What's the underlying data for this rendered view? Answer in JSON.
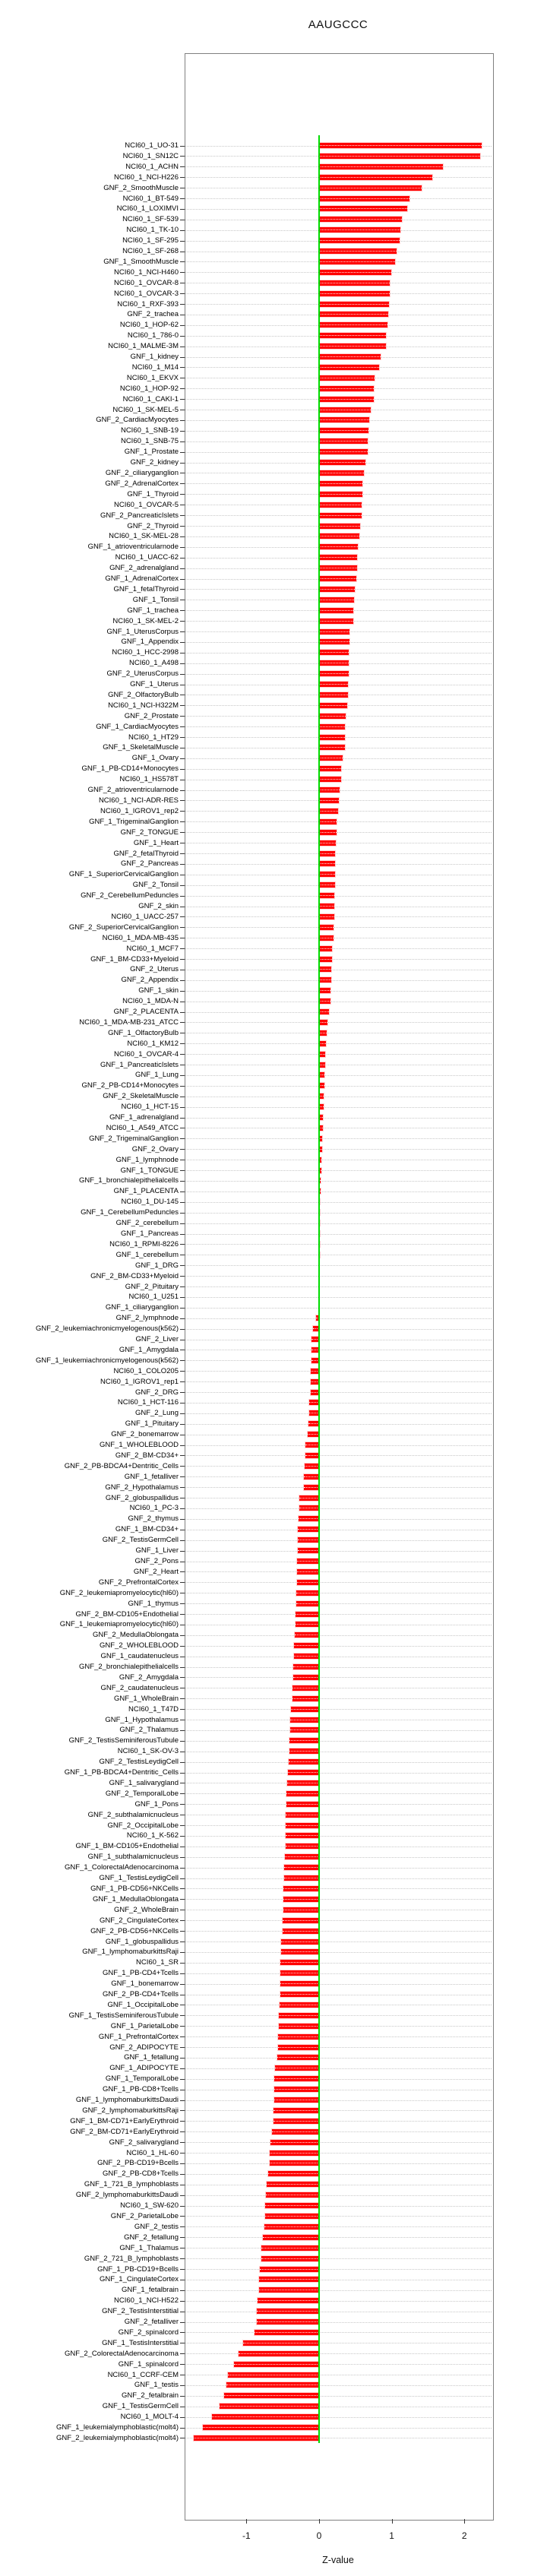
{
  "title": "AAUGCCC",
  "chart_data": {
    "type": "bar",
    "orientation": "horizontal",
    "title": "AAUGCCC",
    "xlabel": "Z-value",
    "x_ticks": [
      -1,
      0,
      1,
      2
    ],
    "xlim": [
      -1.86,
      2.38
    ],
    "grid": "dotted-per-row",
    "legend_position": "none",
    "bar_color": "#FF0000",
    "zero_line_color": "#00DD00",
    "categories": [
      "NCI60_1_UO-31",
      "NCI60_1_SN12C",
      "NCI60_1_ACHN",
      "NCI60_1_NCI-H226",
      "GNF_2_SmoothMuscle",
      "NCI60_1_BT-549",
      "NCI60_1_LOXIMVI",
      "NCI60_1_SF-539",
      "NCI60_1_TK-10",
      "NCI60_1_SF-295",
      "NCI60_1_SF-268",
      "GNF_1_SmoothMuscle",
      "NCI60_1_NCI-H460",
      "NCI60_1_OVCAR-8",
      "NCI60_1_OVCAR-3",
      "NCI60_1_RXF-393",
      "GNF_2_trachea",
      "NCI60_1_HOP-62",
      "NCI60_1_786-0",
      "NCI60_1_MALME-3M",
      "GNF_1_kidney",
      "NCI60_1_M14",
      "NCI60_1_EKVX",
      "NCI60_1_HOP-92",
      "NCI60_1_CAKI-1",
      "NCI60_1_SK-MEL-5",
      "GNF_2_CardiacMyocytes",
      "NCI60_1_SNB-19",
      "NCI60_1_SNB-75",
      "GNF_1_Prostate",
      "GNF_2_kidney",
      "GNF_2_ciliaryganglion",
      "GNF_2_AdrenalCortex",
      "GNF_1_Thyroid",
      "NCI60_1_OVCAR-5",
      "GNF_2_PancreaticIslets",
      "GNF_2_Thyroid",
      "NCI60_1_SK-MEL-28",
      "GNF_1_atrioventricularnode",
      "NCI60_1_UACC-62",
      "GNF_2_adrenalgland",
      "GNF_1_AdrenalCortex",
      "GNF_1_fetalThyroid",
      "GNF_1_Tonsil",
      "GNF_1_trachea",
      "NCI60_1_SK-MEL-2",
      "GNF_1_UterusCorpus",
      "GNF_1_Appendix",
      "NCI60_1_HCC-2998",
      "NCI60_1_A498",
      "GNF_2_UterusCorpus",
      "GNF_1_Uterus",
      "GNF_2_OlfactoryBulb",
      "NCI60_1_NCI-H322M",
      "GNF_2_Prostate",
      "GNF_1_CardiacMyocytes",
      "NCI60_1_HT29",
      "GNF_1_SkeletalMuscle",
      "GNF_1_Ovary",
      "GNF_1_PB-CD14+Monocytes",
      "NCI60_1_HS578T",
      "GNF_2_atrioventricularnode",
      "NCI60_1_NCI-ADR-RES",
      "NCI60_1_IGROV1_rep2",
      "GNF_1_TrigeminalGanglion",
      "GNF_2_TONGUE",
      "GNF_1_Heart",
      "GNF_2_fetalThyroid",
      "GNF_2_Pancreas",
      "GNF_1_SuperiorCervicalGanglion",
      "GNF_2_Tonsil",
      "GNF_2_CerebellumPeduncles",
      "GNF_2_skin",
      "NCI60_1_UACC-257",
      "GNF_2_SuperiorCervicalGanglion",
      "NCI60_1_MDA-MB-435",
      "NCI60_1_MCF7",
      "GNF_1_BM-CD33+Myeloid",
      "GNF_2_Uterus",
      "GNF_2_Appendix",
      "GNF_1_skin",
      "NCI60_1_MDA-N",
      "GNF_2_PLACENTA",
      "NCI60_1_MDA-MB-231_ATCC",
      "GNF_1_OlfactoryBulb",
      "NCI60_1_KM12",
      "NCI60_1_OVCAR-4",
      "GNF_1_PancreaticIslets",
      "GNF_1_Lung",
      "GNF_2_PB-CD14+Monocytes",
      "GNF_2_SkeletalMuscle",
      "NCI60_1_HCT-15",
      "GNF_1_adrenalgland",
      "NCI60_1_A549_ATCC",
      "GNF_2_TrigeminalGanglion",
      "GNF_2_Ovary",
      "GNF_1_lymphnode",
      "GNF_1_TONGUE",
      "GNF_1_bronchialepithelialcells",
      "GNF_1_PLACENTA",
      "NCI60_1_DU-145",
      "GNF_1_CerebellumPeduncles",
      "GNF_2_cerebellum",
      "GNF_1_Pancreas",
      "NCI60_1_RPMI-8226",
      "GNF_1_cerebellum",
      "GNF_1_DRG",
      "GNF_2_BM-CD33+Myeloid",
      "GNF_2_Pituitary",
      "NCI60_1_U251",
      "GNF_1_ciliaryganglion",
      "GNF_2_lymphnode",
      "GNF_2_leukemiachronicmyelogenous(k562)",
      "GNF_2_Liver",
      "GNF_1_Amygdala",
      "GNF_1_leukemiachronicmyelogenous(k562)",
      "NCI60_1_COLO205",
      "NCI60_1_IGROV1_rep1",
      "GNF_2_DRG",
      "NCI60_1_HCT-116",
      "GNF_2_Lung",
      "GNF_1_Pituitary",
      "GNF_2_bonemarrow",
      "GNF_1_WHOLEBLOOD",
      "GNF_2_BM-CD34+",
      "GNF_2_PB-BDCA4+Dentritic_Cells",
      "GNF_1_fetalliver",
      "GNF_2_Hypothalamus",
      "GNF_2_globuspallidus",
      "NCI60_1_PC-3",
      "GNF_2_thymus",
      "GNF_1_BM-CD34+",
      "GNF_2_TestisGermCell",
      "GNF_1_Liver",
      "GNF_2_Pons",
      "GNF_2_Heart",
      "GNF_2_PrefrontalCortex",
      "GNF_2_leukemiapromyelocytic(hl60)",
      "GNF_1_thymus",
      "GNF_2_BM-CD105+Endothelial",
      "GNF_1_leukemiapromyelocytic(hl60)",
      "GNF_2_MedullaOblongata",
      "GNF_2_WHOLEBLOOD",
      "GNF_1_caudatenucleus",
      "GNF_2_bronchialepithelialcells",
      "GNF_2_Amygdala",
      "GNF_2_caudatenucleus",
      "GNF_1_WholeBrain",
      "NCI60_1_T47D",
      "GNF_1_Hypothalamus",
      "GNF_2_Thalamus",
      "GNF_2_TestisSeminiferousTubule",
      "NCI60_1_SK-OV-3",
      "GNF_2_TestisLeydigCell",
      "GNF_1_PB-BDCA4+Dentritic_Cells",
      "GNF_1_salivarygland",
      "GNF_2_TemporalLobe",
      "GNF_1_Pons",
      "GNF_2_subthalamicnucleus",
      "GNF_2_OccipitalLobe",
      "NCI60_1_K-562",
      "GNF_1_BM-CD105+Endothelial",
      "GNF_1_subthalamicnucleus",
      "GNF_1_ColorectalAdenocarcinoma",
      "GNF_1_TestisLeydigCell",
      "GNF_1_PB-CD56+NKCells",
      "GNF_1_MedullaOblongata",
      "GNF_2_WholeBrain",
      "GNF_2_CingulateCortex",
      "GNF_2_PB-CD56+NKCells",
      "GNF_1_globuspallidus",
      "GNF_1_lymphomaburkittsRaji",
      "NCI60_1_SR",
      "GNF_1_PB-CD4+Tcells",
      "GNF_1_bonemarrow",
      "GNF_2_PB-CD4+Tcells",
      "GNF_1_OccipitalLobe",
      "GNF_1_TestisSeminiferousTubule",
      "GNF_1_ParietalLobe",
      "GNF_1_PrefrontalCortex",
      "GNF_2_ADIPOCYTE",
      "GNF_1_fetallung",
      "GNF_1_ADIPOCYTE",
      "GNF_1_TemporalLobe",
      "GNF_1_PB-CD8+Tcells",
      "GNF_1_lymphomaburkittsDaudi",
      "GNF_2_lymphomaburkittsRaji",
      "GNF_1_BM-CD71+EarlyErythroid",
      "GNF_2_BM-CD71+EarlyErythroid",
      "GNF_2_salivarygland",
      "NCI60_1_HL-60",
      "GNF_2_PB-CD19+Bcells",
      "GNF_2_PB-CD8+Tcells",
      "GNF_1_721_B_lymphoblasts",
      "GNF_2_lymphomaburkittsDaudi",
      "NCI60_1_SW-620",
      "GNF_2_ParietalLobe",
      "GNF_2_testis",
      "GNF_2_fetallung",
      "GNF_1_Thalamus",
      "GNF_2_721_B_lymphoblasts",
      "GNF_1_PB-CD19+Bcells",
      "GNF_1_CingulateCortex",
      "GNF_1_fetalbrain",
      "NCI60_1_NCI-H522",
      "GNF_2_TestisInterstitial",
      "GNF_2_fetalliver",
      "GNF_2_spinalcord",
      "GNF_1_TestisInterstitial",
      "GNF_2_ColorectalAdenocarcinoma",
      "GNF_1_spinalcord",
      "NCI60_1_CCRF-CEM",
      "GNF_1_testis",
      "GNF_2_fetalbrain",
      "GNF_1_TestisGermCell",
      "NCI60_1_MOLT-4",
      "GNF_1_leukemialymphoblastic(molt4)",
      "GNF_2_leukemialymphoblastic(molt4)"
    ],
    "values": [
      2.24,
      2.22,
      1.71,
      1.56,
      1.41,
      1.24,
      1.21,
      1.14,
      1.12,
      1.11,
      1.07,
      1.05,
      0.99,
      0.975,
      0.97,
      0.96,
      0.95,
      0.94,
      0.925,
      0.92,
      0.85,
      0.83,
      0.76,
      0.755,
      0.75,
      0.71,
      0.69,
      0.68,
      0.67,
      0.665,
      0.64,
      0.62,
      0.6,
      0.597,
      0.59,
      0.588,
      0.56,
      0.55,
      0.53,
      0.528,
      0.52,
      0.515,
      0.49,
      0.48,
      0.475,
      0.47,
      0.42,
      0.418,
      0.41,
      0.408,
      0.405,
      0.4,
      0.398,
      0.39,
      0.365,
      0.36,
      0.357,
      0.355,
      0.32,
      0.305,
      0.3,
      0.28,
      0.27,
      0.265,
      0.245,
      0.243,
      0.225,
      0.222,
      0.22,
      0.218,
      0.215,
      0.213,
      0.21,
      0.208,
      0.2,
      0.198,
      0.175,
      0.173,
      0.17,
      0.168,
      0.155,
      0.152,
      0.14,
      0.12,
      0.1,
      0.09,
      0.085,
      0.08,
      0.075,
      0.07,
      0.065,
      0.06,
      0.055,
      0.05,
      0.045,
      0.04,
      0.035,
      0.03,
      0.022,
      0.018,
      0.015,
      0.012,
      0.01,
      0.008,
      0.006,
      0.005,
      0.003,
      0.001,
      0.0,
      -0.002,
      -0.004,
      -0.04,
      -0.08,
      -0.1,
      -0.105,
      -0.107,
      -0.11,
      -0.112,
      -0.12,
      -0.135,
      -0.138,
      -0.15,
      -0.155,
      -0.19,
      -0.192,
      -0.2,
      -0.205,
      -0.21,
      -0.27,
      -0.272,
      -0.28,
      -0.29,
      -0.292,
      -0.295,
      -0.3,
      -0.302,
      -0.305,
      -0.31,
      -0.312,
      -0.32,
      -0.322,
      -0.33,
      -0.34,
      -0.35,
      -0.352,
      -0.36,
      -0.362,
      -0.37,
      -0.39,
      -0.4,
      -0.402,
      -0.41,
      -0.412,
      -0.415,
      -0.43,
      -0.44,
      -0.45,
      -0.455,
      -0.458,
      -0.46,
      -0.462,
      -0.464,
      -0.466,
      -0.48,
      -0.482,
      -0.49,
      -0.492,
      -0.495,
      -0.5,
      -0.502,
      -0.52,
      -0.522,
      -0.53,
      -0.532,
      -0.534,
      -0.536,
      -0.54,
      -0.55,
      -0.552,
      -0.56,
      -0.57,
      -0.58,
      -0.61,
      -0.612,
      -0.614,
      -0.616,
      -0.63,
      -0.632,
      -0.65,
      -0.67,
      -0.68,
      -0.682,
      -0.7,
      -0.72,
      -0.73,
      -0.74,
      -0.742,
      -0.75,
      -0.77,
      -0.79,
      -0.792,
      -0.82,
      -0.822,
      -0.83,
      -0.85,
      -0.86,
      -0.862,
      -0.89,
      -1.05,
      -1.11,
      -1.17,
      -1.26,
      -1.28,
      -1.31,
      -1.37,
      -1.47,
      -1.6,
      -1.73
    ]
  }
}
